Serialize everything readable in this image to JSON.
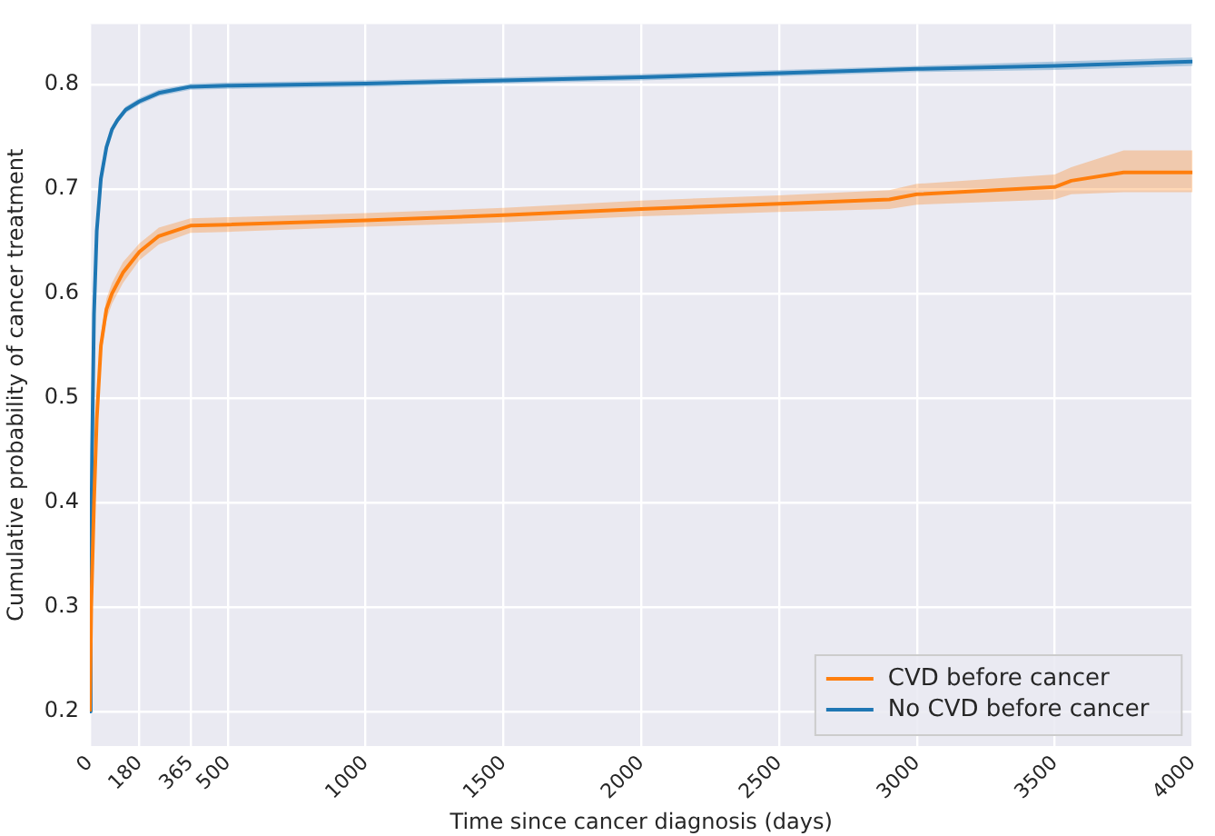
{
  "chart_data": {
    "type": "line",
    "xlabel": "Time since cancer diagnosis (days)",
    "ylabel": "Cumulative probability of cancer treatment",
    "xlim": [
      0,
      4000
    ],
    "xticks": [
      0,
      180,
      365,
      500,
      1000,
      1500,
      2000,
      2500,
      3000,
      3500,
      4000
    ],
    "ylim": [
      0.167,
      0.858
    ],
    "yticks": [
      0.2,
      0.3,
      0.4,
      0.5,
      0.6,
      0.7,
      0.8
    ],
    "grid": true,
    "legend": "bottom right",
    "marker": "none",
    "line_style": "solid",
    "series": [
      {
        "name": "CVD before cancer",
        "color": "#ff7f0e",
        "x": [
          0,
          5,
          15,
          25,
          40,
          60,
          80,
          120,
          180,
          250,
          365,
          500,
          1000,
          1500,
          2000,
          2500,
          2900,
          3000,
          3500,
          3560,
          3750,
          4000
        ],
        "values": [
          0.2,
          0.3,
          0.4,
          0.48,
          0.55,
          0.585,
          0.6,
          0.62,
          0.64,
          0.655,
          0.665,
          0.666,
          0.67,
          0.675,
          0.681,
          0.686,
          0.69,
          0.695,
          0.702,
          0.708,
          0.716,
          0.716
        ],
        "lower": [
          0.19,
          0.29,
          0.39,
          0.47,
          0.54,
          0.575,
          0.59,
          0.61,
          0.632,
          0.647,
          0.658,
          0.659,
          0.664,
          0.668,
          0.674,
          0.678,
          0.681,
          0.685,
          0.69,
          0.695,
          0.697,
          0.697
        ],
        "upper": [
          0.21,
          0.31,
          0.41,
          0.49,
          0.56,
          0.595,
          0.61,
          0.63,
          0.648,
          0.663,
          0.672,
          0.673,
          0.677,
          0.682,
          0.689,
          0.694,
          0.699,
          0.705,
          0.714,
          0.721,
          0.737,
          0.737
        ]
      },
      {
        "name": "No CVD before cancer",
        "color": "#1f77b4",
        "x": [
          0,
          3,
          8,
          15,
          25,
          40,
          60,
          80,
          100,
          130,
          180,
          250,
          365,
          500,
          1000,
          1500,
          2000,
          2500,
          3000,
          3500,
          4000
        ],
        "values": [
          0.2,
          0.3,
          0.45,
          0.58,
          0.66,
          0.71,
          0.74,
          0.757,
          0.766,
          0.776,
          0.784,
          0.792,
          0.798,
          0.799,
          0.801,
          0.804,
          0.807,
          0.811,
          0.815,
          0.818,
          0.822
        ],
        "lower": [
          0.197,
          0.297,
          0.447,
          0.577,
          0.657,
          0.707,
          0.737,
          0.754,
          0.763,
          0.773,
          0.781,
          0.789,
          0.795,
          0.796,
          0.798,
          0.801,
          0.804,
          0.808,
          0.812,
          0.814,
          0.818
        ],
        "upper": [
          0.203,
          0.303,
          0.453,
          0.583,
          0.663,
          0.713,
          0.743,
          0.76,
          0.769,
          0.779,
          0.787,
          0.795,
          0.801,
          0.802,
          0.804,
          0.807,
          0.81,
          0.814,
          0.818,
          0.822,
          0.826
        ]
      }
    ]
  }
}
